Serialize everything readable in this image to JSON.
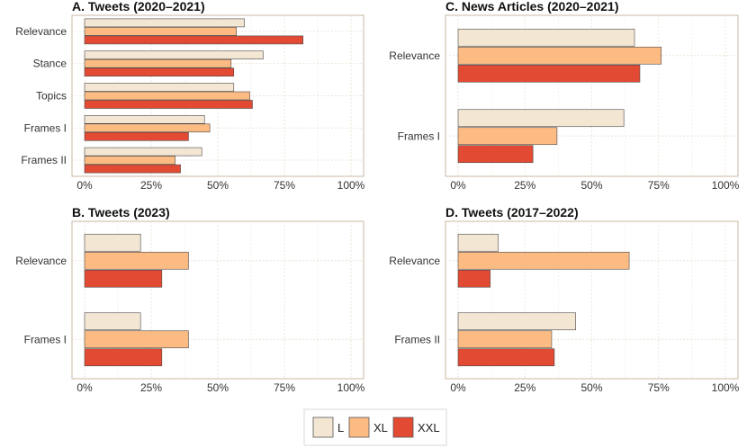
{
  "legend": {
    "items": [
      {
        "label": "L",
        "color": "#f3e6d3"
      },
      {
        "label": "XL",
        "color": "#fdbb84"
      },
      {
        "label": "XXL",
        "color": "#e34a33"
      }
    ]
  },
  "chart_data": [
    {
      "type": "bar",
      "orientation": "horizontal",
      "title": "A. Tweets (2020–2021)",
      "categories": [
        "Relevance",
        "Stance",
        "Topics",
        "Frames I",
        "Frames II"
      ],
      "series": [
        {
          "name": "L",
          "values": [
            0.6,
            0.67,
            0.56,
            0.45,
            0.44
          ]
        },
        {
          "name": "XL",
          "values": [
            0.57,
            0.55,
            0.62,
            0.47,
            0.34
          ]
        },
        {
          "name": "XXL",
          "values": [
            0.82,
            0.56,
            0.63,
            0.39,
            0.36
          ]
        }
      ],
      "x_ticks": [
        "0%",
        "25%",
        "50%",
        "75%",
        "100%"
      ],
      "xlim": [
        0,
        1
      ],
      "grid": true
    },
    {
      "type": "bar",
      "orientation": "horizontal",
      "title": "C. News Articles (2020–2021)",
      "categories": [
        "Relevance",
        "Frames I"
      ],
      "series": [
        {
          "name": "L",
          "values": [
            0.66,
            0.62
          ]
        },
        {
          "name": "XL",
          "values": [
            0.76,
            0.37
          ]
        },
        {
          "name": "XXL",
          "values": [
            0.68,
            0.28
          ]
        }
      ],
      "x_ticks": [
        "0%",
        "25%",
        "50%",
        "75%",
        "100%"
      ],
      "xlim": [
        0,
        1
      ],
      "grid": true
    },
    {
      "type": "bar",
      "orientation": "horizontal",
      "title": "B. Tweets (2023)",
      "categories": [
        "Relevance",
        "Frames I"
      ],
      "series": [
        {
          "name": "L",
          "values": [
            0.21,
            0.21
          ]
        },
        {
          "name": "XL",
          "values": [
            0.39,
            0.39
          ]
        },
        {
          "name": "XXL",
          "values": [
            0.29,
            0.29
          ]
        }
      ],
      "x_ticks": [
        "0%",
        "25%",
        "50%",
        "75%",
        "100%"
      ],
      "xlim": [
        0,
        1
      ],
      "grid": true
    },
    {
      "type": "bar",
      "orientation": "horizontal",
      "title": "D. Tweets (2017–2022)",
      "categories": [
        "Relevance",
        "Frames II"
      ],
      "series": [
        {
          "name": "L",
          "values": [
            0.15,
            0.44
          ]
        },
        {
          "name": "XL",
          "values": [
            0.64,
            0.35
          ]
        },
        {
          "name": "XXL",
          "values": [
            0.12,
            0.36
          ]
        }
      ],
      "x_ticks": [
        "0%",
        "25%",
        "50%",
        "75%",
        "100%"
      ],
      "xlim": [
        0,
        1
      ],
      "grid": true
    }
  ]
}
